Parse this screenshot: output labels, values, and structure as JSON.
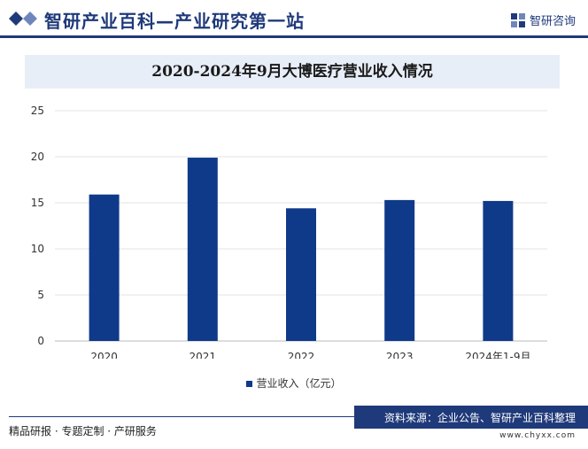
{
  "header": {
    "title": "智研产业百科—产业研究第一站",
    "brand": "智研咨询"
  },
  "chart_data": {
    "type": "bar",
    "title": "2020-2024年9月大博医疗营业收入情况",
    "categories": [
      "2020",
      "2021",
      "2022",
      "2023",
      "2024年1-9月"
    ],
    "series": [
      {
        "name": "营业收入（亿元）",
        "values": [
          15.9,
          19.9,
          14.4,
          15.3,
          15.2
        ]
      }
    ],
    "ylim": [
      0,
      25
    ],
    "yticks": [
      0,
      5,
      10,
      15,
      20,
      25
    ],
    "grid": true,
    "legend": "bottom",
    "color": "#0f3a8a"
  },
  "footer": {
    "left": "精品研报 · 专题定制 · 产研服务",
    "source": "资料来源：企业公告、智研产业百科整理",
    "url": "www.chyxx.com"
  }
}
